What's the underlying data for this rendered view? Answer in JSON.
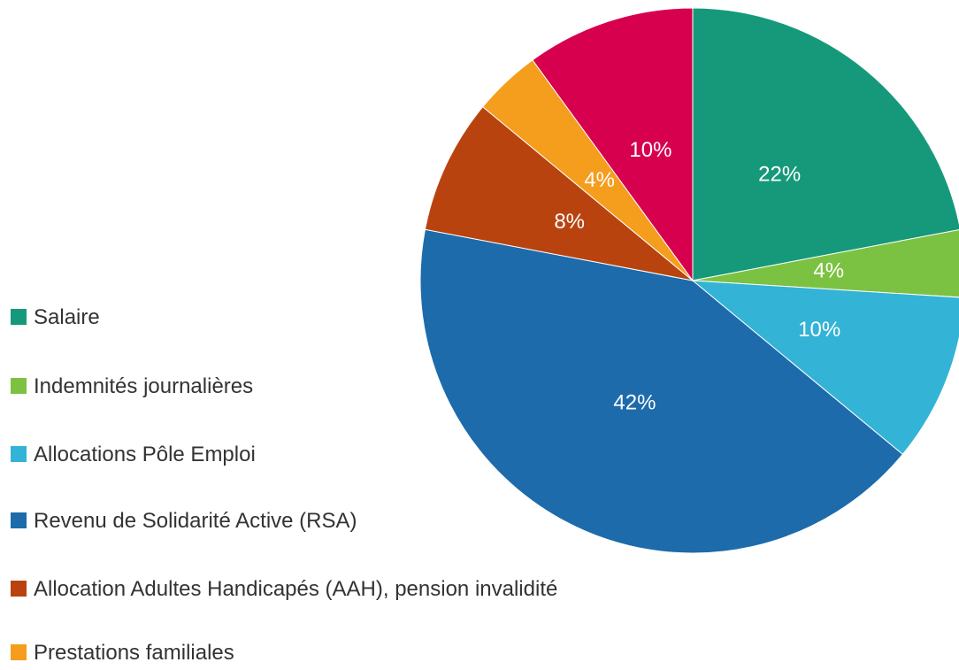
{
  "chart_data": {
    "type": "pie",
    "categories": [
      "Salaire",
      "Indemnités journalières",
      "Allocations Pôle Emploi",
      "Revenu de Solidarité Active (RSA)",
      "Allocation Adultes Handicapés (AAH), pension invalidité",
      "Prestations familiales",
      null
    ],
    "values": [
      22,
      4,
      10,
      42,
      8,
      4,
      10
    ],
    "value_labels": [
      "22%",
      "4%",
      "10%",
      "42%",
      "8%",
      "4%",
      "10%"
    ],
    "colors": [
      "#16997a",
      "#7cc242",
      "#33b3d6",
      "#1d6bab",
      "#b9430f",
      "#f59d1c",
      "#d6004f"
    ],
    "legend": "left"
  }
}
